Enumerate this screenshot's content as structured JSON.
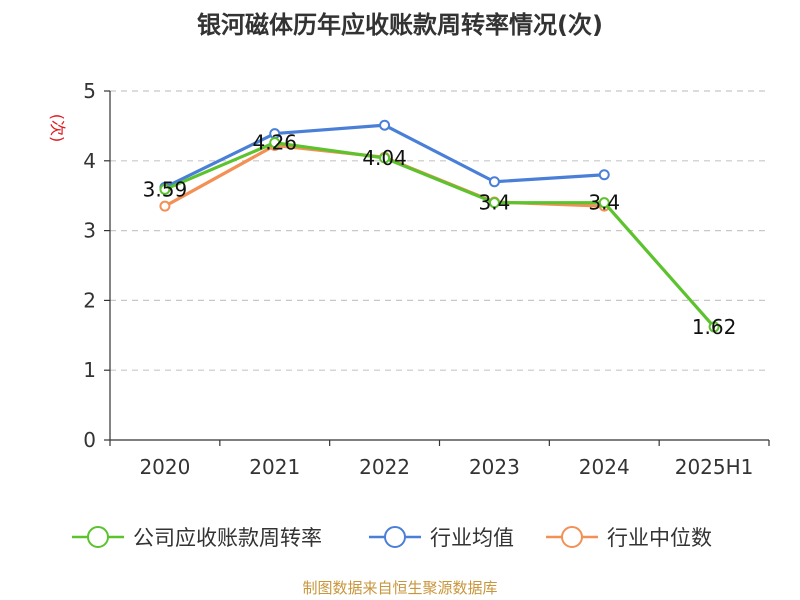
{
  "chart_data": {
    "type": "line",
    "title": "银河磁体历年应收账款周转率情况(次)",
    "ylabel": "(次)",
    "xlabel": "",
    "categories": [
      "2020",
      "2021",
      "2022",
      "2023",
      "2024",
      "2025H1"
    ],
    "ylim": [
      0,
      5
    ],
    "yticks": [
      0,
      1,
      2,
      3,
      4,
      5
    ],
    "grid": true,
    "legend_position": "bottom",
    "series": [
      {
        "name": "公司应收账款周转率",
        "color": "#5cc22d",
        "values": [
          3.59,
          4.26,
          4.04,
          3.4,
          3.4,
          1.62
        ],
        "labels": [
          "3.59",
          "4.26",
          "4.04",
          "3.4",
          "3.4",
          "1.62"
        ]
      },
      {
        "name": "行业均值",
        "color": "#4a7fd8",
        "values": [
          3.62,
          4.39,
          4.51,
          3.7,
          3.8,
          null
        ]
      },
      {
        "name": "行业中位数",
        "color": "#f39056",
        "values": [
          3.35,
          4.22,
          4.05,
          3.41,
          3.35,
          null
        ]
      }
    ],
    "source": "制图数据来自恒生聚源数据库"
  }
}
